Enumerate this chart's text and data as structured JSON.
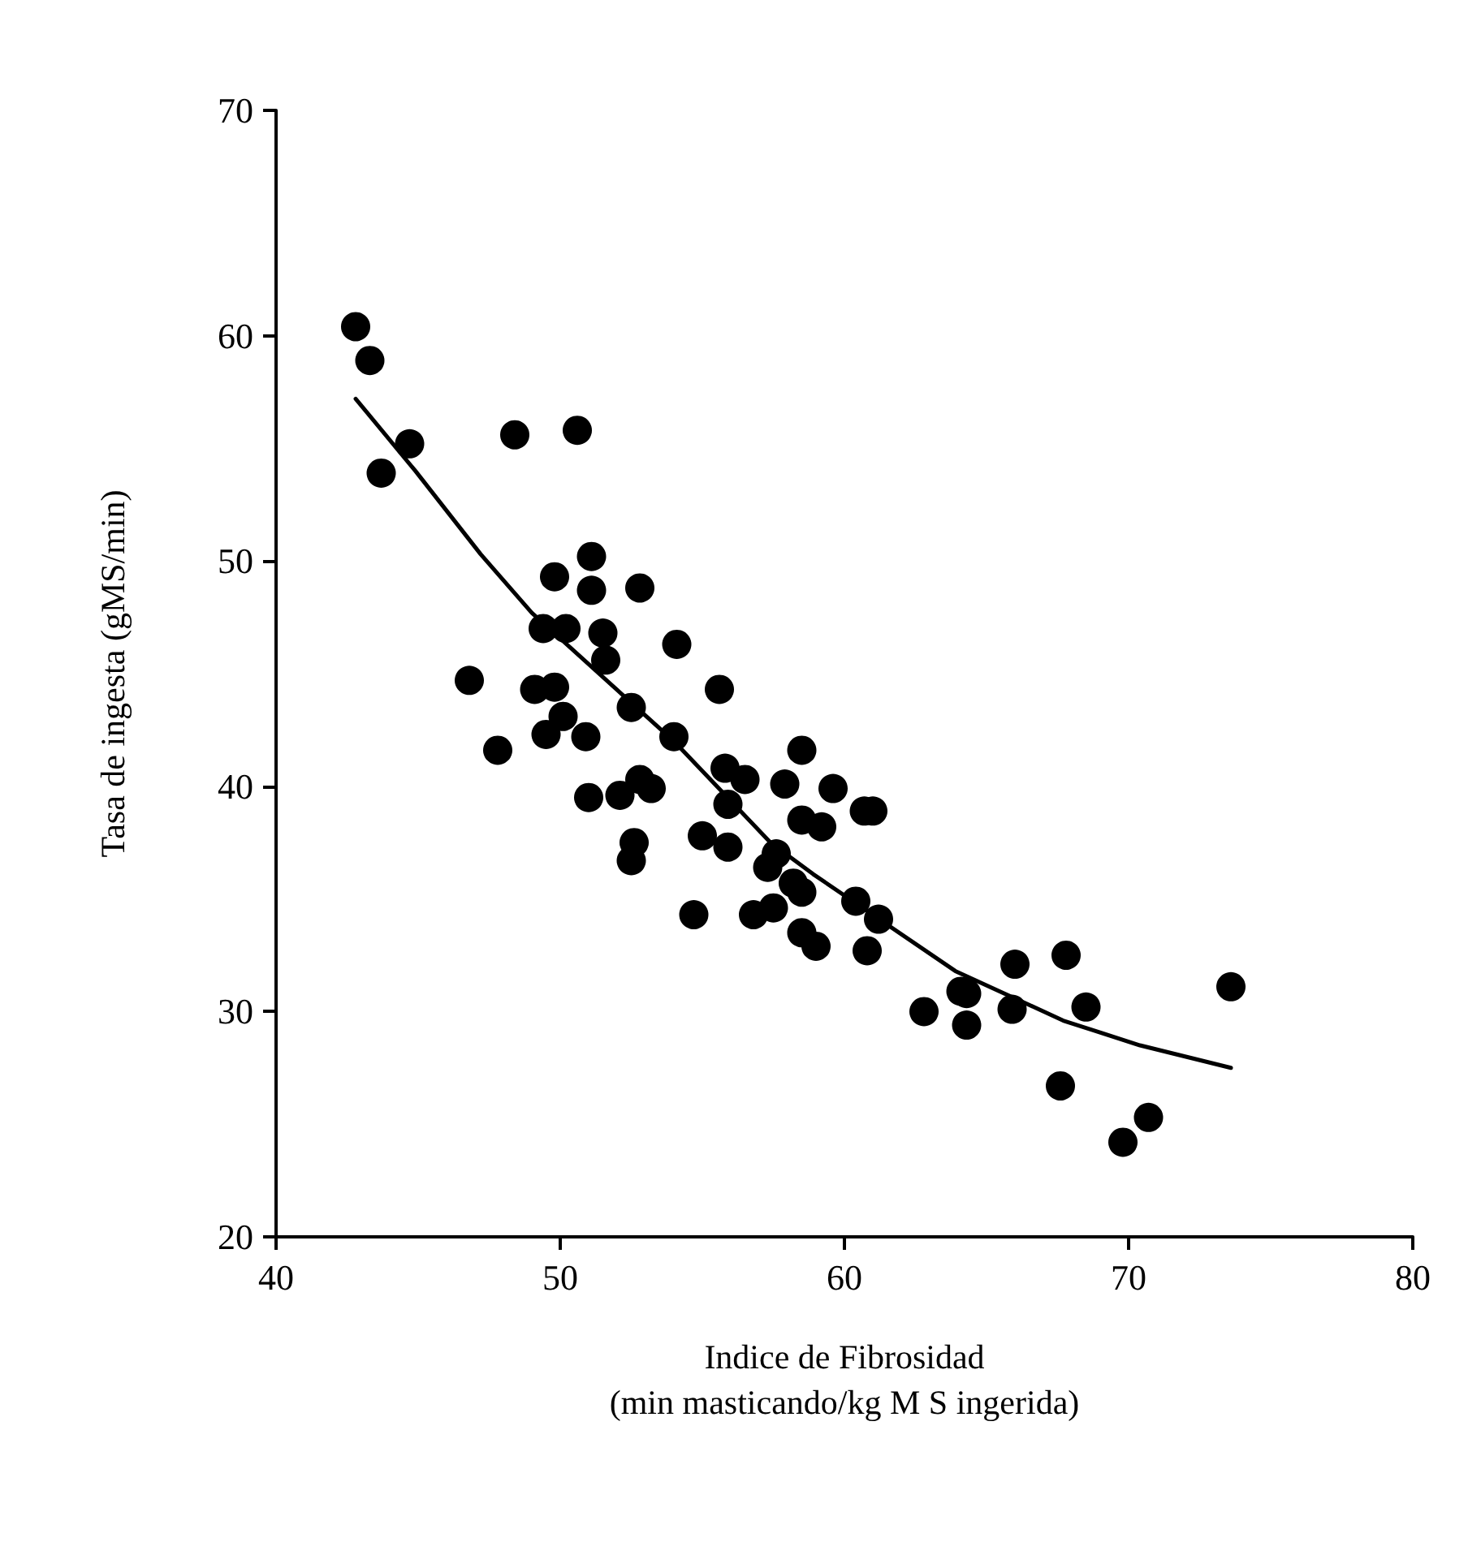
{
  "chart_data": {
    "type": "scatter",
    "xlabel": "Indice de Fibrosidad\n(min masticando/kg M S ingerida)",
    "ylabel": "Tasa de ingesta (gMS/min)",
    "xlim": [
      40,
      80
    ],
    "xticks": [
      40,
      50,
      60,
      70,
      80
    ],
    "ylim": [
      20,
      70
    ],
    "yticks": [
      20,
      30,
      40,
      50,
      60,
      70
    ],
    "marker": "circle",
    "series": [
      {
        "color": "#000000",
        "x": [
          42.8,
          43.3,
          44.7,
          43.7,
          48.4,
          50.6,
          51.1,
          49.8,
          51.1,
          52.8,
          49.4,
          50.2,
          51.5,
          54.1,
          51.6,
          46.8,
          49.1,
          49.8,
          55.6,
          52.5,
          50.1,
          49.5,
          50.9,
          54.0,
          47.8,
          55.8,
          56.5,
          55.9,
          58.5,
          57.9,
          59.6,
          58.5,
          59.2,
          60.7,
          61.0,
          51.0,
          52.1,
          52.8,
          53.2,
          52.6,
          52.5,
          55.0,
          55.9,
          57.6,
          57.3,
          58.2,
          58.5,
          56.8,
          57.5,
          54.7,
          58.5,
          59.0,
          60.4,
          61.2,
          60.8,
          64.1,
          62.8,
          64.3,
          64.3,
          66.0,
          67.8,
          65.9,
          68.5,
          73.6,
          67.6,
          70.7,
          69.8
        ],
        "values": [
          60.4,
          58.9,
          55.2,
          53.9,
          55.6,
          55.8,
          50.2,
          49.3,
          48.7,
          48.8,
          47.0,
          47.0,
          46.8,
          46.3,
          45.6,
          44.7,
          44.3,
          44.4,
          44.3,
          43.5,
          43.1,
          42.3,
          42.2,
          42.2,
          41.6,
          40.8,
          40.3,
          39.2,
          41.6,
          40.1,
          39.9,
          38.5,
          38.2,
          38.9,
          38.9,
          39.5,
          39.6,
          40.3,
          39.9,
          37.5,
          36.7,
          37.8,
          37.3,
          37.0,
          36.4,
          35.7,
          35.3,
          34.3,
          34.6,
          34.3,
          33.5,
          32.9,
          34.9,
          34.1,
          32.7,
          30.9,
          30.0,
          30.8,
          29.4,
          32.1,
          32.5,
          30.1,
          30.2,
          31.1,
          26.7,
          25.3,
          24.2
        ]
      },
      {
        "type": "line",
        "color": "#000000",
        "marker": "none",
        "line_style": "solid",
        "x": [
          42.8,
          44.9,
          47.2,
          49.0,
          54.0,
          57.4,
          58.9,
          63.9,
          67.7,
          70.4,
          73.6
        ],
        "values": [
          57.2,
          54.0,
          50.3,
          47.7,
          42.0,
          37.5,
          36.1,
          31.8,
          29.6,
          28.5,
          27.5
        ]
      }
    ]
  }
}
